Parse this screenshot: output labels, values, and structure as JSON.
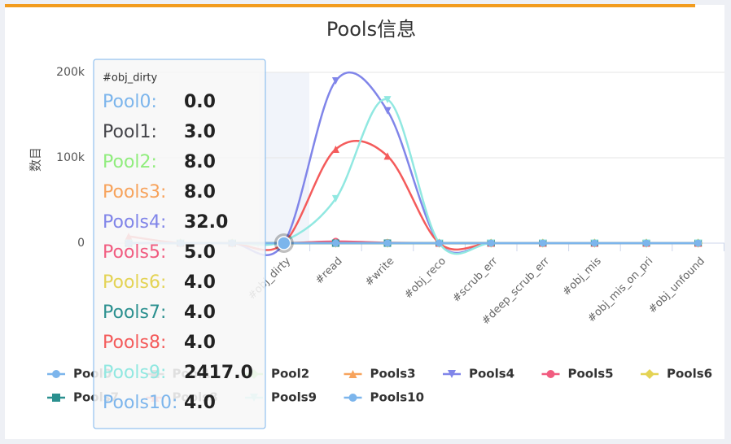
{
  "chart_data": {
    "type": "spline",
    "title": "Pools信息",
    "y_label": "数目",
    "categories": [
      null,
      null,
      null,
      "#obj_dirty",
      "#read",
      "#write",
      "#obj_reco",
      "#scrub_err",
      "#deep_scrub_err",
      "#obj_mis",
      "#obj_mis_on_pri",
      "#obj_unfound"
    ],
    "ylim": [
      0,
      200000
    ],
    "yticks": [
      0,
      {
        "value": 100000,
        "label": "100k"
      },
      {
        "value": 200000,
        "label": "200k"
      }
    ],
    "grid": true,
    "legend": "bottom",
    "series": [
      {
        "name": "Pool0",
        "color": "#7cb5ec",
        "marker": "circle",
        "values": [
          0,
          0,
          0,
          0,
          0,
          0,
          0,
          0,
          0,
          0,
          0,
          0
        ],
        "value_labels": [
          null,
          null,
          null,
          "0.0",
          null,
          null,
          null,
          null,
          null,
          null,
          null,
          null
        ]
      },
      {
        "name": "Pool1",
        "color": "#434348",
        "marker": "square",
        "values": [
          0,
          0,
          0,
          3,
          0,
          0,
          0,
          0,
          0,
          0,
          0,
          0
        ],
        "value_labels": [
          null,
          null,
          null,
          "3.0",
          null,
          null,
          null,
          null,
          null,
          null,
          null,
          null
        ]
      },
      {
        "name": "Pool2",
        "color": "#90ed7d",
        "marker": "diamond",
        "values": [
          0,
          0,
          0,
          8,
          0,
          0,
          0,
          0,
          0,
          0,
          0,
          0
        ],
        "value_labels": [
          null,
          null,
          null,
          "8.0",
          null,
          null,
          null,
          null,
          null,
          null,
          null,
          null
        ]
      },
      {
        "name": "Pools3",
        "color": "#f7a35c",
        "marker": "triangle",
        "values": [
          0,
          0,
          0,
          8,
          0,
          0,
          0,
          0,
          0,
          0,
          0,
          0
        ],
        "value_labels": [
          null,
          null,
          null,
          "8.0",
          null,
          null,
          null,
          null,
          null,
          null,
          null,
          null
        ]
      },
      {
        "name": "Pools4",
        "color": "#8085e9",
        "marker": "triangle-down",
        "values": [
          0,
          0,
          0,
          32,
          190000,
          155000,
          0,
          0,
          0,
          0,
          0,
          0
        ],
        "value_labels": [
          null,
          null,
          null,
          "32.0",
          null,
          null,
          null,
          null,
          null,
          null,
          null,
          null
        ]
      },
      {
        "name": "Pools5",
        "color": "#f15c80",
        "marker": "circle",
        "values": [
          0,
          0,
          0,
          5,
          2000,
          500,
          0,
          0,
          0,
          0,
          0,
          0
        ],
        "value_labels": [
          null,
          null,
          null,
          "5.0",
          null,
          null,
          null,
          null,
          null,
          null,
          null,
          null
        ]
      },
      {
        "name": "Pools6",
        "color": "#e4d354",
        "marker": "diamond",
        "values": [
          0,
          0,
          0,
          4,
          0,
          0,
          0,
          0,
          0,
          0,
          0,
          0
        ],
        "value_labels": [
          null,
          null,
          null,
          "4.0",
          null,
          null,
          null,
          null,
          null,
          null,
          null,
          null
        ]
      },
      {
        "name": "Pools7",
        "color": "#2b908f",
        "marker": "square",
        "values": [
          0,
          0,
          0,
          4,
          0,
          0,
          0,
          0,
          0,
          0,
          0,
          0
        ],
        "value_labels": [
          null,
          null,
          null,
          "4.0",
          null,
          null,
          null,
          null,
          null,
          null,
          null,
          null
        ]
      },
      {
        "name": "Pools8",
        "color": "#f45b5b",
        "marker": "triangle",
        "values": [
          8000,
          0,
          0,
          4,
          110000,
          102000,
          0,
          0,
          0,
          0,
          0,
          0
        ],
        "value_labels": [
          null,
          null,
          null,
          "4.0",
          null,
          null,
          null,
          null,
          null,
          null,
          null,
          null
        ]
      },
      {
        "name": "Pools9",
        "color": "#91e8e1",
        "marker": "triangle-down",
        "values": [
          0,
          0,
          0,
          2417,
          52000,
          168000,
          0,
          0,
          0,
          0,
          0,
          0
        ],
        "value_labels": [
          null,
          null,
          null,
          "2417.0",
          null,
          null,
          null,
          null,
          null,
          null,
          null,
          null
        ]
      },
      {
        "name": "Pools10",
        "color": "#7cb5ec",
        "marker": "circle",
        "values": [
          0,
          0,
          0,
          4,
          0,
          0,
          0,
          0,
          0,
          0,
          0,
          0
        ],
        "value_labels": [
          null,
          null,
          null,
          "4.0",
          null,
          null,
          null,
          null,
          null,
          null,
          null,
          null
        ]
      }
    ],
    "tooltip": {
      "separator": ":"
    }
  }
}
